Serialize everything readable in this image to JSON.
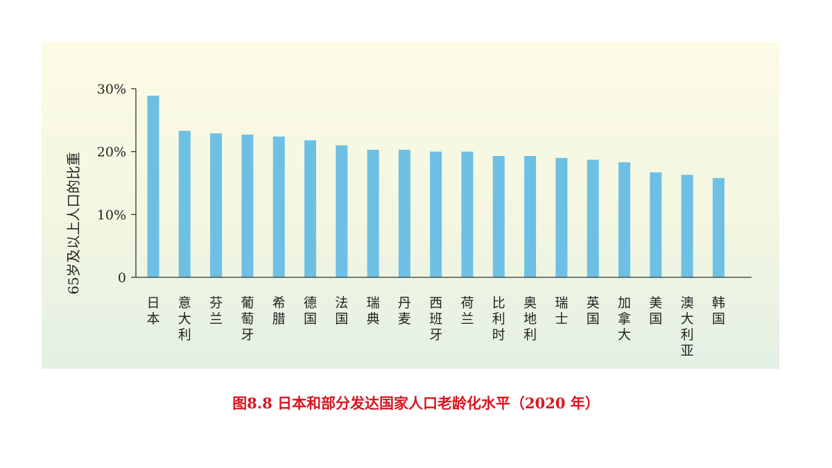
{
  "caption": "图8.8 日本和部分发达国家人口老龄化水平（2020 年）",
  "chart_data": {
    "type": "bar",
    "title": "",
    "xlabel": "",
    "ylabel": "65岁及以上人口的比重",
    "ylim": [
      0,
      30
    ],
    "yticks": [
      {
        "value": 0,
        "label": "0"
      },
      {
        "value": 10,
        "label": "10%"
      },
      {
        "value": 20,
        "label": "20%"
      },
      {
        "value": 30,
        "label": "30%"
      }
    ],
    "grid": false,
    "bar_color": "#6dc0e4",
    "categories": [
      "日本",
      "意大利",
      "芬兰",
      "葡萄牙",
      "希腊",
      "德国",
      "法国",
      "瑞典",
      "丹麦",
      "西班牙",
      "荷兰",
      "比利时",
      "奥地利",
      "瑞士",
      "英国",
      "加拿大",
      "美国",
      "澳大利亚",
      "韩国"
    ],
    "values": [
      28.9,
      23.3,
      22.9,
      22.7,
      22.4,
      21.8,
      21.0,
      20.3,
      20.3,
      20.0,
      20.0,
      19.3,
      19.3,
      19.0,
      18.7,
      18.3,
      16.7,
      16.3,
      15.8
    ]
  }
}
